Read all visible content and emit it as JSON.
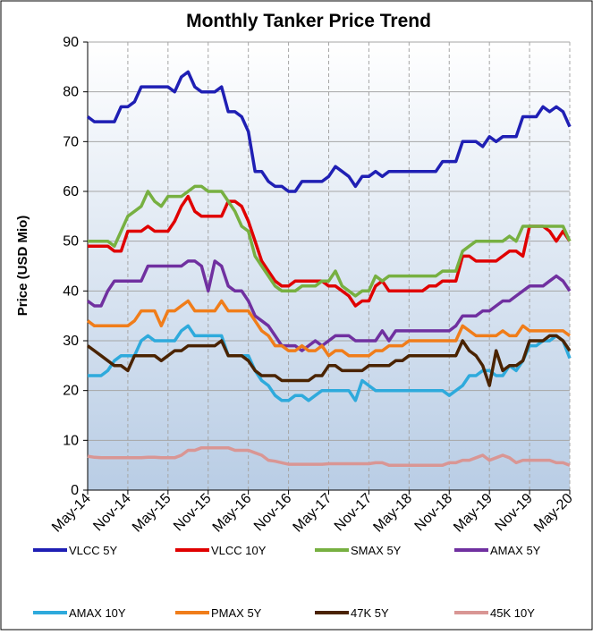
{
  "chart_data": {
    "type": "line",
    "title": "Monthly Tanker Price Trend",
    "y_label": "Price (USD Mio)",
    "categories": [
      "May-14",
      null,
      null,
      null,
      null,
      null,
      "Nov-14",
      null,
      null,
      null,
      null,
      null,
      "May-15",
      null,
      null,
      null,
      null,
      null,
      "Nov-15",
      null,
      null,
      null,
      null,
      null,
      "May-16",
      null,
      null,
      null,
      null,
      null,
      "Nov-16",
      null,
      null,
      null,
      null,
      null,
      "May-17",
      null,
      null,
      null,
      null,
      null,
      "Nov-17",
      null,
      null,
      null,
      null,
      null,
      "May-18",
      null,
      null,
      null,
      null,
      null,
      "Nov-18",
      null,
      null,
      null,
      null,
      null,
      "May-19",
      null,
      null,
      null,
      null,
      null,
      "Nov-19",
      null,
      null,
      null,
      null,
      null,
      "May-20"
    ],
    "ylim": [
      0,
      90
    ],
    "yticks": [
      0,
      10,
      20,
      30,
      40,
      50,
      60,
      70,
      80,
      90
    ],
    "grid": true,
    "legend": "bottom",
    "series": [
      {
        "name": "VLCC 5Y",
        "color": "#1f1fb4",
        "values": [
          75,
          74,
          74,
          74,
          74,
          77,
          77,
          78,
          81,
          81,
          81,
          81,
          81,
          80,
          83,
          84,
          81,
          80,
          80,
          80,
          81,
          76,
          76,
          75,
          72,
          64,
          64,
          62,
          61,
          61,
          60,
          60,
          62,
          62,
          62,
          62,
          63,
          65,
          64,
          63,
          61,
          63,
          63,
          64,
          63,
          64,
          64,
          64,
          64,
          64,
          64,
          64,
          64,
          66,
          66,
          66,
          70,
          70,
          70,
          69,
          71,
          70,
          71,
          71,
          71,
          75,
          75,
          75,
          77,
          76,
          77,
          76,
          73
        ]
      },
      {
        "name": "VLCC 10Y",
        "color": "#e00000",
        "values": [
          49,
          49,
          49,
          49,
          48,
          48,
          52,
          52,
          52,
          53,
          52,
          52,
          52,
          54,
          57,
          59,
          56,
          55,
          55,
          55,
          55,
          58,
          58,
          57,
          54,
          50,
          46,
          44,
          42,
          41,
          41,
          42,
          42,
          42,
          42,
          42,
          41,
          41,
          40,
          39,
          37,
          38,
          38,
          41,
          42,
          40,
          40,
          40,
          40,
          40,
          40,
          41,
          41,
          42,
          42,
          42,
          47,
          47,
          46,
          46,
          46,
          46,
          47,
          48,
          48,
          47,
          53,
          53,
          53,
          52,
          50,
          52,
          50
        ]
      },
      {
        "name": "SMAX 5Y",
        "color": "#77b041",
        "values": [
          50,
          50,
          50,
          50,
          49,
          52,
          55,
          56,
          57,
          60,
          58,
          57,
          59,
          59,
          59,
          60,
          61,
          61,
          60,
          60,
          60,
          58,
          56,
          53,
          52,
          47,
          45,
          43,
          41,
          40,
          40,
          40,
          41,
          41,
          41,
          42,
          42,
          44,
          41,
          40,
          39,
          40,
          40,
          43,
          42,
          43,
          43,
          43,
          43,
          43,
          43,
          43,
          43,
          44,
          44,
          44,
          48,
          49,
          50,
          50,
          50,
          50,
          50,
          51,
          50,
          53,
          53,
          53,
          53,
          53,
          53,
          53,
          50
        ]
      },
      {
        "name": "AMAX 5Y",
        "color": "#7030a0",
        "values": [
          38,
          37,
          37,
          40,
          42,
          42,
          42,
          42,
          42,
          45,
          45,
          45,
          45,
          45,
          45,
          46,
          46,
          45,
          40,
          46,
          45,
          41,
          40,
          40,
          38,
          35,
          34,
          33,
          31,
          29,
          29,
          29,
          28,
          29,
          30,
          29,
          30,
          31,
          31,
          31,
          30,
          30,
          30,
          30,
          32,
          30,
          32,
          32,
          32,
          32,
          32,
          32,
          32,
          32,
          32,
          33,
          35,
          35,
          35,
          36,
          36,
          37,
          38,
          38,
          39,
          40,
          41,
          41,
          41,
          42,
          43,
          42,
          40
        ]
      },
      {
        "name": "AMAX 10Y",
        "color": "#2eaadc",
        "values": [
          23,
          23,
          23,
          24,
          26,
          27,
          27,
          27,
          30,
          31,
          30,
          30,
          30,
          30,
          32,
          33,
          31,
          31,
          31,
          31,
          31,
          27,
          27,
          27,
          27,
          24,
          22,
          21,
          19,
          18,
          18,
          19,
          19,
          18,
          19,
          20,
          20,
          20,
          20,
          20,
          18,
          22,
          21,
          20,
          20,
          20,
          20,
          20,
          20,
          20,
          20,
          20,
          20,
          20,
          19,
          20,
          21,
          23,
          23,
          24,
          24,
          23,
          23,
          25,
          24,
          26,
          29,
          29,
          30,
          30,
          31,
          30,
          26.5
        ]
      },
      {
        "name": "PMAX 5Y",
        "color": "#f07d1a",
        "values": [
          34,
          33,
          33,
          33,
          33,
          33,
          33,
          34,
          36,
          36,
          36,
          33,
          36,
          36,
          37,
          38,
          36,
          36,
          36,
          36,
          38,
          36,
          36,
          36,
          36,
          34,
          32,
          31,
          29,
          29,
          28,
          28,
          29,
          28,
          28,
          29,
          27,
          28,
          28,
          27,
          27,
          27,
          27,
          28,
          28,
          29,
          29,
          29,
          30,
          30,
          30,
          30,
          30,
          30,
          30,
          30,
          33,
          32,
          31,
          31,
          31,
          31,
          32,
          31,
          31,
          33,
          32,
          32,
          32,
          32,
          32,
          32,
          31
        ]
      },
      {
        "name": "47K 5Y",
        "color": "#4a2300",
        "values": [
          29,
          28,
          27,
          26,
          25,
          25,
          24,
          27,
          27,
          27,
          27,
          26,
          27,
          28,
          28,
          29,
          29,
          29,
          29,
          29,
          30,
          27,
          27,
          27,
          26,
          24,
          23,
          23,
          23,
          22,
          22,
          22,
          22,
          22,
          23,
          23,
          25,
          25,
          24,
          24,
          24,
          24,
          25,
          25,
          25,
          25,
          26,
          26,
          27,
          27,
          27,
          27,
          27,
          27,
          27,
          27,
          30,
          28,
          27,
          25,
          21,
          28,
          24,
          25,
          25,
          26,
          30,
          30,
          30,
          31,
          31,
          30,
          28
        ]
      },
      {
        "name": "45K 10Y",
        "color": "#d99694",
        "values": [
          6.8,
          6.6,
          6.5,
          6.5,
          6.5,
          6.5,
          6.5,
          6.5,
          6.5,
          6.6,
          6.6,
          6.5,
          6.5,
          6.5,
          7,
          8,
          8,
          8.5,
          8.5,
          8.5,
          8.5,
          8.5,
          8,
          8,
          8,
          7.5,
          7,
          6,
          5.8,
          5.5,
          5.2,
          5.2,
          5.2,
          5.2,
          5.2,
          5.2,
          5.3,
          5.3,
          5.3,
          5.3,
          5.3,
          5.3,
          5.3,
          5.5,
          5.5,
          5,
          5,
          5,
          5,
          5,
          5,
          5,
          5,
          5,
          5.5,
          5.5,
          6,
          6,
          6.5,
          7,
          6,
          6.5,
          7,
          6.5,
          5.5,
          6,
          6,
          6,
          6,
          6,
          5.5,
          5.5,
          5
        ]
      }
    ]
  }
}
